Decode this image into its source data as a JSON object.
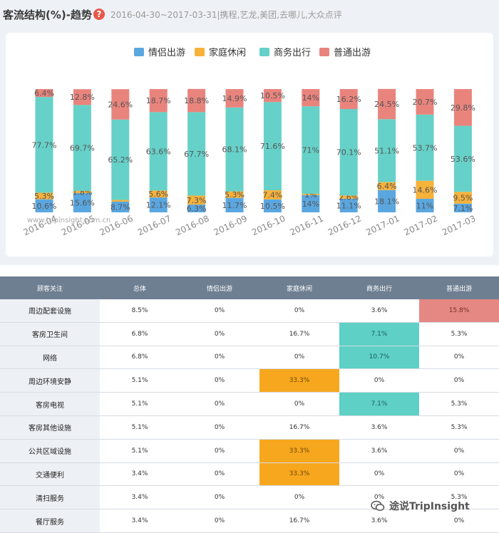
{
  "header": {
    "title": "客流结构(%)-趋势",
    "help_glyph": "?",
    "subtitle": "2016-04-30~2017-03-31|携程,艺龙,美团,去哪儿,大众点评"
  },
  "chart_data": {
    "type": "bar",
    "stacked": true,
    "categories": [
      "2016-04",
      "2016-05",
      "2016-06",
      "2016-07",
      "2016-08",
      "2016-09",
      "2016-10",
      "2016-11",
      "2016-12",
      "2017-01",
      "2017-02",
      "2017-03"
    ],
    "series": [
      {
        "name": "情侣出游",
        "color": "#5aa7e0",
        "values": [
          10.6,
          15.6,
          8.7,
          12.1,
          6.3,
          11.7,
          10.5,
          14,
          11.1,
          18.1,
          11,
          7.1
        ]
      },
      {
        "name": "家庭休闲",
        "color": "#f7b23a",
        "values": [
          5.3,
          1.8,
          1.4,
          5.6,
          7.3,
          5.3,
          7.4,
          1,
          2.6,
          6.4,
          14.6,
          9.5
        ]
      },
      {
        "name": "商务出行",
        "color": "#66d1c8",
        "values": [
          77.7,
          69.7,
          65.2,
          63.6,
          67.7,
          68.1,
          71.6,
          71,
          70.1,
          51.1,
          53.7,
          53.6
        ]
      },
      {
        "name": "普通出游",
        "color": "#e9847d",
        "values": [
          6.4,
          12.8,
          24.6,
          18.7,
          18.8,
          14.9,
          10.5,
          14,
          16.2,
          24.5,
          20.7,
          29.8
        ]
      }
    ],
    "labels": [
      [
        "10.6%",
        "5.3%",
        "77.7%",
        "6.4%"
      ],
      [
        "15.6%",
        "1.8%",
        "69.7%",
        "12.8%"
      ],
      [
        "8.7%",
        "",
        "65.2%",
        "24.6%"
      ],
      [
        "12.1%",
        "5.6%",
        "63.6%",
        "18.7%"
      ],
      [
        "6.3%",
        "7.3%",
        "67.7%",
        "18.8%"
      ],
      [
        "11.7%",
        "5.3%",
        "68.1%",
        "14.9%"
      ],
      [
        "10.5%",
        "7.4%",
        "71.6%",
        "10.5%"
      ],
      [
        "14%",
        "1%",
        "71%",
        "14%"
      ],
      [
        "11.1%",
        "2.6%",
        "70.1%",
        "16.2%"
      ],
      [
        "18.1%",
        "6.4%",
        "51.1%",
        "24.5%"
      ],
      [
        "11%",
        "14.6%",
        "53.7%",
        "20.7%"
      ],
      [
        "7.1%",
        "9.5%",
        "53.6%",
        "29.8%"
      ]
    ],
    "ylim": [
      0,
      100
    ],
    "legend_position": "top",
    "watermark": "www.tripinsight.com.cn"
  },
  "table": {
    "headers": [
      "顾客关注",
      "总体",
      "情侣出游",
      "家庭休闲",
      "商务出行",
      "普通出游"
    ],
    "rows": [
      {
        "cells": [
          "周边配套设施",
          "8.5%",
          "0%",
          "0%",
          "3.6%",
          "15.8%"
        ],
        "highlight": {
          "5": "red"
        }
      },
      {
        "cells": [
          "客房卫生间",
          "6.8%",
          "0%",
          "16.7%",
          "7.1%",
          "5.3%"
        ],
        "highlight": {
          "4": "teal"
        }
      },
      {
        "cells": [
          "网络",
          "6.8%",
          "0%",
          "0%",
          "10.7%",
          "0%"
        ],
        "highlight": {
          "4": "teal"
        }
      },
      {
        "cells": [
          "周边环境安静",
          "5.1%",
          "0%",
          "33.3%",
          "0%",
          "0%"
        ],
        "highlight": {
          "3": "orange"
        }
      },
      {
        "cells": [
          "客房电视",
          "5.1%",
          "0%",
          "0%",
          "7.1%",
          "5.3%"
        ],
        "highlight": {
          "4": "teal"
        }
      },
      {
        "cells": [
          "客房其他设施",
          "5.1%",
          "0%",
          "16.7%",
          "3.6%",
          "5.3%"
        ],
        "highlight": {}
      },
      {
        "cells": [
          "公共区域设施",
          "5.1%",
          "0%",
          "33.3%",
          "3.6%",
          "0%"
        ],
        "highlight": {
          "3": "orange"
        }
      },
      {
        "cells": [
          "交通便利",
          "3.4%",
          "0%",
          "33.3%",
          "0%",
          "0%"
        ],
        "highlight": {
          "3": "orange"
        }
      },
      {
        "cells": [
          "清扫服务",
          "3.4%",
          "0%",
          "0%",
          "0%",
          "5.3%"
        ],
        "highlight": {}
      },
      {
        "cells": [
          "餐厅服务",
          "3.4%",
          "0%",
          "16.7%",
          "3.6%",
          "0%"
        ],
        "highlight": {}
      }
    ]
  },
  "watermark_logo": {
    "icon": "wechat-icon",
    "text": "途说TripInsight"
  }
}
